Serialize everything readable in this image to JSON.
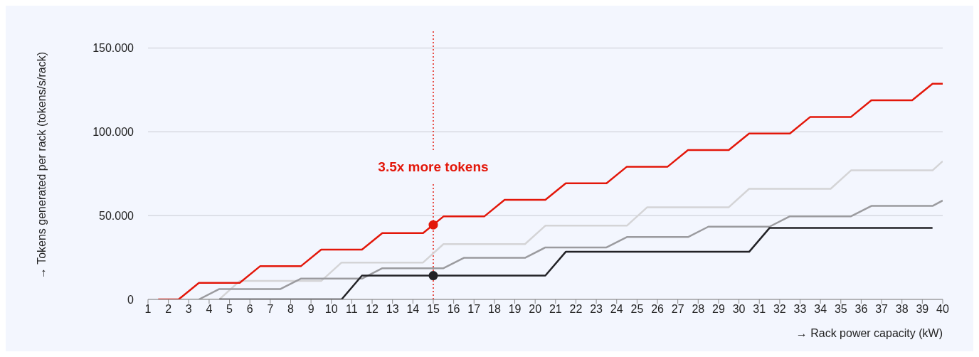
{
  "chart_data": {
    "type": "line",
    "xlabel": "→ Rack power capacity (kW)",
    "ylabel": "→ Tokens generated per rack (tokens/s/rack)",
    "xlim": [
      1,
      40
    ],
    "ylim": [
      0,
      160
    ],
    "xticks": [
      1,
      2,
      3,
      4,
      5,
      6,
      7,
      8,
      9,
      10,
      11,
      12,
      13,
      14,
      15,
      16,
      17,
      18,
      19,
      20,
      21,
      22,
      23,
      24,
      25,
      26,
      27,
      28,
      29,
      30,
      31,
      32,
      33,
      34,
      35,
      36,
      37,
      38,
      39,
      40
    ],
    "yticks": [
      0,
      {
        "value": 50,
        "label": "50.000"
      },
      {
        "value": 100,
        "label": "100.000"
      },
      {
        "value": 150,
        "label": "150.000"
      }
    ],
    "grid": "y",
    "legend": false,
    "marker": "none",
    "line_style": "solid",
    "series": [
      {
        "color": "#d4d4d6",
        "x": [
          2.5,
          3.5,
          4.5,
          5.5,
          6.5,
          7.5,
          8.5,
          9.5,
          10.5,
          11.5,
          12.5,
          13.5,
          14.5,
          15.5,
          16.5,
          17.5,
          18.5,
          19.5,
          20.5,
          21.5,
          22.5,
          23.5,
          24.5,
          25.5,
          26.5,
          27.5,
          28.5,
          29.5,
          30.5,
          31.5,
          32.5,
          33.5,
          34.5,
          35.5,
          36.5,
          37.5,
          38.5,
          39.5,
          40
        ],
        "values": [
          0,
          0,
          0,
          11,
          11,
          11,
          11,
          11,
          22,
          22,
          22,
          22,
          22,
          33,
          33,
          33,
          33,
          33,
          44,
          44,
          44,
          44,
          44,
          55,
          55,
          55,
          55,
          55,
          66,
          66,
          66,
          66,
          66,
          77,
          77,
          77,
          77,
          77,
          82.5
        ]
      },
      {
        "color": "#9b9b9f",
        "x": [
          3.5,
          4.5,
          5.5,
          6.5,
          7.5,
          8.5,
          9.5,
          10.5,
          11.5,
          12.5,
          13.5,
          14.5,
          15.5,
          16.5,
          17.5,
          18.5,
          19.5,
          20.5,
          21.5,
          22.5,
          23.5,
          24.5,
          25.5,
          26.5,
          27.5,
          28.5,
          29.5,
          30.5,
          31.5,
          32.5,
          33.5,
          34.5,
          35.5,
          36.5,
          37.5,
          38.5,
          39.5,
          40
        ],
        "values": [
          0,
          6.2,
          6.2,
          6.2,
          6.2,
          12.4,
          12.4,
          12.4,
          12.4,
          18.6,
          18.6,
          18.6,
          18.6,
          24.8,
          24.8,
          24.8,
          24.8,
          31,
          31,
          31,
          31,
          37.2,
          37.2,
          37.2,
          37.2,
          43.4,
          43.4,
          43.4,
          43.4,
          49.6,
          49.6,
          49.6,
          49.6,
          55.8,
          55.8,
          55.8,
          55.8,
          59
        ]
      },
      {
        "color": "#222226",
        "x": [
          4.5,
          5.5,
          6.5,
          7.5,
          8.5,
          9.5,
          10.5,
          11.5,
          12.5,
          13.5,
          14.5,
          15.5,
          16.5,
          17.5,
          18.5,
          19.5,
          20.5,
          21.5,
          22.5,
          23.5,
          24.5,
          25.5,
          26.5,
          27.5,
          28.5,
          29.5,
          30.5,
          31.5,
          32.5,
          33.5,
          34.5,
          35.5,
          36.5,
          37.5,
          38.5,
          39.5
        ],
        "values": [
          0,
          0,
          0,
          0,
          0,
          0,
          0,
          14.2,
          14.2,
          14.2,
          14.2,
          14.2,
          14.2,
          14.2,
          14.2,
          14.2,
          14.2,
          28.4,
          28.4,
          28.4,
          28.4,
          28.4,
          28.4,
          28.4,
          28.4,
          28.4,
          28.4,
          42.6,
          42.6,
          42.6,
          42.6,
          42.6,
          42.6,
          42.6,
          42.6,
          42.6
        ]
      },
      {
        "color": "#e3170a",
        "x": [
          1.5,
          2.5,
          3.5,
          4.5,
          5.5,
          6.5,
          7.5,
          8.5,
          9.5,
          10.5,
          11.5,
          12.5,
          13.5,
          14.5,
          15.5,
          16.5,
          17.5,
          18.5,
          19.5,
          20.5,
          21.5,
          22.5,
          23.5,
          24.5,
          25.5,
          26.5,
          27.5,
          28.5,
          29.5,
          30.5,
          31.5,
          32.5,
          33.5,
          34.5,
          35.5,
          36.5,
          37.5,
          38.5,
          39.5,
          40
        ],
        "values": [
          0,
          0,
          9.9,
          9.9,
          9.9,
          19.8,
          19.8,
          19.8,
          29.7,
          29.7,
          29.7,
          39.6,
          39.6,
          39.6,
          49.5,
          49.5,
          49.5,
          59.4,
          59.4,
          59.4,
          69.3,
          69.3,
          69.3,
          79.2,
          79.2,
          79.2,
          89.1,
          89.1,
          89.1,
          99,
          99,
          99,
          108.9,
          108.9,
          108.9,
          118.8,
          118.8,
          118.8,
          128.7,
          128.7
        ]
      },
      {
        "type": "scatter",
        "marker": "circle",
        "color": "#e3170a",
        "x": [
          15
        ],
        "values": [
          44.5
        ]
      },
      {
        "type": "scatter",
        "marker": "circle",
        "color": "#222226",
        "x": [
          15
        ],
        "values": [
          14.2
        ]
      }
    ],
    "ref_lines": [
      {
        "axis": "x",
        "value": 15,
        "label": "3.5x more tokens",
        "color": "#e3170a",
        "line_style": "dotted"
      }
    ]
  }
}
